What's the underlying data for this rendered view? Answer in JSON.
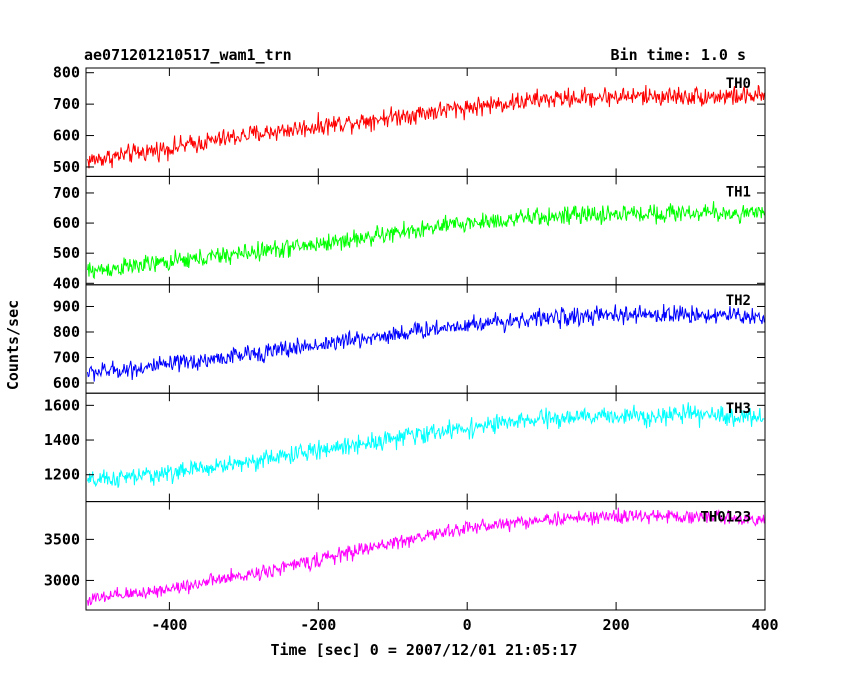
{
  "header": {
    "title": "ae071201210517_wam1_trn",
    "bin_time": "Bin time: 1.0 s"
  },
  "chart_data": {
    "type": "line",
    "xlabel": "Time [sec] 0 = 2007/12/01 21:05:17",
    "ylabel": "Counts/sec",
    "xlim": [
      -512,
      400
    ],
    "xticks": [
      -400,
      -200,
      0,
      200,
      400
    ],
    "x_sampling": {
      "start": -510,
      "end": 399,
      "step": 1
    },
    "panels": [
      {
        "name": "TH0",
        "color": "#ff0000",
        "ylim": [
          470,
          815
        ],
        "yticks": [
          500,
          600,
          700,
          800
        ],
        "trend_x": [
          -510,
          -400,
          -300,
          -200,
          -100,
          0,
          100,
          200,
          300,
          399
        ],
        "trend_y": [
          520,
          560,
          600,
          630,
          660,
          690,
          715,
          725,
          725,
          725
        ],
        "noise_amplitude": 35
      },
      {
        "name": "TH1",
        "color": "#00ff00",
        "ylim": [
          395,
          755
        ],
        "yticks": [
          400,
          500,
          600,
          700
        ],
        "trend_x": [
          -510,
          -400,
          -300,
          -200,
          -100,
          0,
          100,
          200,
          300,
          399
        ],
        "trend_y": [
          440,
          470,
          500,
          530,
          565,
          600,
          620,
          630,
          635,
          630
        ],
        "noise_amplitude": 35
      },
      {
        "name": "TH2",
        "color": "#0000ff",
        "ylim": [
          560,
          985
        ],
        "yticks": [
          600,
          700,
          800,
          900
        ],
        "trend_x": [
          -510,
          -400,
          -300,
          -200,
          -100,
          0,
          100,
          200,
          300,
          399
        ],
        "trend_y": [
          640,
          670,
          710,
          750,
          790,
          830,
          855,
          865,
          870,
          860
        ],
        "noise_amplitude": 40
      },
      {
        "name": "TH3",
        "color": "#00ffff",
        "ylim": [
          1045,
          1670
        ],
        "yticks": [
          1200,
          1400,
          1600
        ],
        "trend_x": [
          -510,
          -400,
          -300,
          -200,
          -100,
          0,
          100,
          200,
          300,
          399
        ],
        "trend_y": [
          1160,
          1210,
          1270,
          1340,
          1410,
          1470,
          1520,
          1540,
          1545,
          1530
        ],
        "noise_amplitude": 60
      },
      {
        "name": "TH0123",
        "color": "#ff00ff",
        "ylim": [
          2640,
          3960
        ],
        "yticks": [
          3000,
          3500
        ],
        "trend_x": [
          -510,
          -400,
          -300,
          -200,
          -100,
          0,
          100,
          200,
          300,
          399
        ],
        "trend_y": [
          2760,
          2900,
          3060,
          3250,
          3460,
          3640,
          3740,
          3780,
          3780,
          3750
        ],
        "noise_amplitude": 100
      }
    ]
  }
}
